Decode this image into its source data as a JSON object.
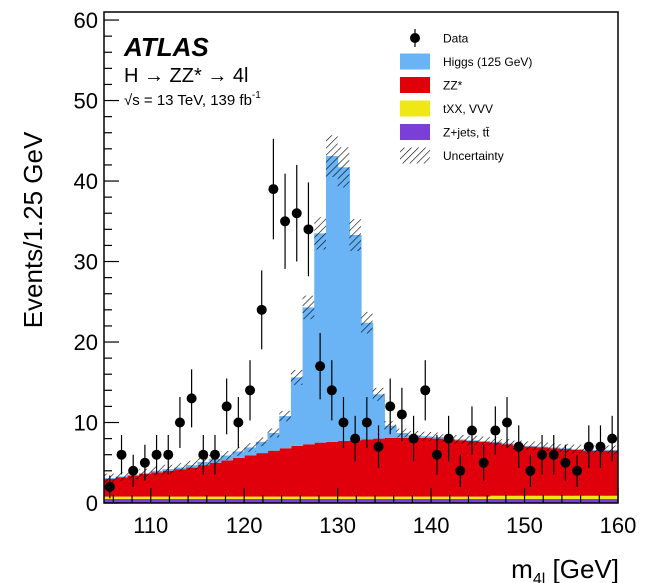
{
  "chart_data": {
    "type": "bar",
    "subtype": "stacked-histogram-with-data-points",
    "xlabel_main": "m",
    "xlabel_sub": "4l",
    "xlabel_unit": " [GeV]",
    "ylabel": "Events/1.25 GeV",
    "xlim": [
      105,
      160
    ],
    "ylim": [
      0,
      61
    ],
    "x_ticks": [
      110,
      120,
      130,
      140,
      150,
      160
    ],
    "y_ticks": [
      0,
      10,
      20,
      30,
      40,
      50,
      60
    ],
    "grid": false,
    "legend_position": "top-right",
    "annotation": {
      "experiment": "ATLAS",
      "process_h": "H ",
      "process_arrow1": "→",
      "process_zz": " ZZ* ",
      "process_arrow2": "→",
      "process_final": " 4l",
      "sqrt": "√",
      "energy_text": "s = 13 TeV, 139 fb",
      "lumi_exp": "-1"
    },
    "colors": {
      "higgs": "#6ab4f5",
      "zz": "#e0000c",
      "txx": "#f0e814",
      "zjets": "#7a3fd6",
      "data": "#000000"
    },
    "bin_width": 1.25,
    "x_start": 105,
    "series": [
      {
        "name": "Z+jets, tt̄",
        "color": "#7a3fd6",
        "values": [
          0.5,
          0.5,
          0.5,
          0.5,
          0.5,
          0.5,
          0.5,
          0.5,
          0.5,
          0.5,
          0.5,
          0.5,
          0.5,
          0.5,
          0.5,
          0.5,
          0.5,
          0.5,
          0.5,
          0.5,
          0.5,
          0.5,
          0.5,
          0.5,
          0.5,
          0.5,
          0.5,
          0.5,
          0.5,
          0.5,
          0.5,
          0.5,
          0.5,
          0.5,
          0.5,
          0.5,
          0.5,
          0.5,
          0.5,
          0.5,
          0.5,
          0.5,
          0.5,
          0.5
        ]
      },
      {
        "name": "tXX, VVV",
        "color": "#f0e814",
        "values": [
          0.3,
          0.3,
          0.3,
          0.3,
          0.3,
          0.3,
          0.3,
          0.3,
          0.3,
          0.3,
          0.3,
          0.3,
          0.3,
          0.3,
          0.3,
          0.3,
          0.3,
          0.3,
          0.3,
          0.3,
          0.3,
          0.3,
          0.3,
          0.3,
          0.3,
          0.3,
          0.3,
          0.3,
          0.3,
          0.3,
          0.3,
          0.3,
          0.3,
          0.4,
          0.4,
          0.4,
          0.4,
          0.4,
          0.4,
          0.4,
          0.4,
          0.4,
          0.4,
          0.4
        ]
      },
      {
        "name": "ZZ*",
        "color": "#e0000c",
        "values": [
          2.2,
          2.4,
          2.6,
          2.8,
          3.0,
          3.2,
          3.4,
          3.6,
          3.9,
          4.2,
          4.5,
          4.8,
          5.1,
          5.4,
          5.7,
          6.0,
          6.3,
          6.5,
          6.7,
          6.8,
          6.9,
          7.0,
          7.1,
          7.2,
          7.3,
          7.3,
          7.3,
          7.3,
          7.2,
          7.1,
          7.0,
          6.9,
          6.8,
          6.6,
          6.4,
          6.2,
          6.1,
          6.0,
          5.9,
          5.8,
          5.7,
          5.6,
          5.6,
          5.6
        ]
      },
      {
        "name": "Higgs (125 GeV)",
        "color": "#6ab4f5",
        "values": [
          0.1,
          0.1,
          0.1,
          0.1,
          0.2,
          0.2,
          0.2,
          0.3,
          0.4,
          0.5,
          0.6,
          0.8,
          1.0,
          1.4,
          2.2,
          4.0,
          8.5,
          17.0,
          26.0,
          35.5,
          34.0,
          25.5,
          14.5,
          5.5,
          1.5,
          0.6,
          0.3,
          0.2,
          0.2,
          0.1,
          0.1,
          0.1,
          0.1,
          0.1,
          0.1,
          0.1,
          0.1,
          0.1,
          0.1,
          0.1,
          0.1,
          0.1,
          0.1,
          0.1
        ]
      }
    ],
    "uncertainty": {
      "name": "Uncertainty",
      "relative": 0.06
    },
    "data_points": [
      {
        "x": 105.625,
        "y": 2
      },
      {
        "x": 106.875,
        "y": 6
      },
      {
        "x": 108.125,
        "y": 4
      },
      {
        "x": 109.375,
        "y": 5
      },
      {
        "x": 110.625,
        "y": 6
      },
      {
        "x": 111.875,
        "y": 6
      },
      {
        "x": 113.125,
        "y": 10
      },
      {
        "x": 114.375,
        "y": 13
      },
      {
        "x": 115.625,
        "y": 6
      },
      {
        "x": 116.875,
        "y": 6
      },
      {
        "x": 118.125,
        "y": 12
      },
      {
        "x": 119.375,
        "y": 10
      },
      {
        "x": 120.625,
        "y": 14
      },
      {
        "x": 121.875,
        "y": 24
      },
      {
        "x": 123.125,
        "y": 39
      },
      {
        "x": 124.375,
        "y": 35
      },
      {
        "x": 125.625,
        "y": 36
      },
      {
        "x": 126.875,
        "y": 34
      },
      {
        "x": 128.125,
        "y": 17
      },
      {
        "x": 129.375,
        "y": 14
      },
      {
        "x": 130.625,
        "y": 10
      },
      {
        "x": 131.875,
        "y": 8
      },
      {
        "x": 133.125,
        "y": 10
      },
      {
        "x": 134.375,
        "y": 7
      },
      {
        "x": 135.625,
        "y": 12
      },
      {
        "x": 136.875,
        "y": 11
      },
      {
        "x": 138.125,
        "y": 8
      },
      {
        "x": 139.375,
        "y": 14
      },
      {
        "x": 140.625,
        "y": 6
      },
      {
        "x": 141.875,
        "y": 8
      },
      {
        "x": 143.125,
        "y": 4
      },
      {
        "x": 144.375,
        "y": 9
      },
      {
        "x": 145.625,
        "y": 5
      },
      {
        "x": 146.875,
        "y": 9
      },
      {
        "x": 148.125,
        "y": 10
      },
      {
        "x": 149.375,
        "y": 7
      },
      {
        "x": 150.625,
        "y": 4
      },
      {
        "x": 151.875,
        "y": 6
      },
      {
        "x": 153.125,
        "y": 6
      },
      {
        "x": 154.375,
        "y": 5
      },
      {
        "x": 155.625,
        "y": 4
      },
      {
        "x": 156.875,
        "y": 7
      },
      {
        "x": 158.125,
        "y": 7
      },
      {
        "x": 159.375,
        "y": 8
      }
    ],
    "legend": [
      {
        "label": "Data",
        "kind": "marker",
        "color": "#000000"
      },
      {
        "label": "Higgs (125 GeV)",
        "kind": "box",
        "color": "#6ab4f5"
      },
      {
        "label": "ZZ*",
        "kind": "box",
        "color": "#e0000c"
      },
      {
        "label": "tXX, VVV",
        "kind": "box",
        "color": "#f0e814"
      },
      {
        "label": "Z+jets, tt̄",
        "kind": "box",
        "color": "#7a3fd6"
      },
      {
        "label": "Uncertainty",
        "kind": "hatch",
        "color": "#000000"
      }
    ]
  }
}
